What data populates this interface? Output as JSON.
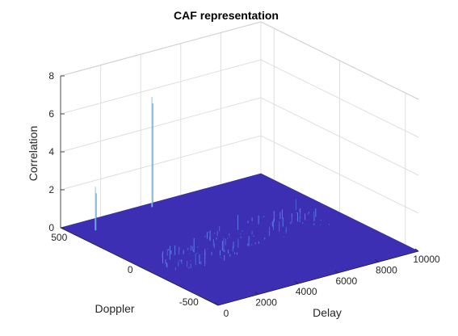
{
  "chart_data": {
    "type": "surface3d",
    "title": "CAF representation",
    "xlabel": "Delay",
    "ylabel": "Doppler",
    "zlabel": "Correlation",
    "xlim": [
      0,
      10000
    ],
    "ylim": [
      -600,
      600
    ],
    "zlim": [
      0,
      8
    ],
    "xticks": [
      "0",
      "2000",
      "4000",
      "6000",
      "8000",
      "10000"
    ],
    "yticks": [
      "500",
      "0",
      "-500"
    ],
    "zticks": [
      "0",
      "2",
      "4",
      "6",
      "8"
    ],
    "grid": true,
    "colormap": "parula",
    "surface_color": "#3d2fb4",
    "peaks": [
      {
        "delay": 4300,
        "doppler": 560,
        "correlation": 5.8
      },
      {
        "delay": 950,
        "doppler": 480,
        "correlation": 2.3
      }
    ]
  }
}
